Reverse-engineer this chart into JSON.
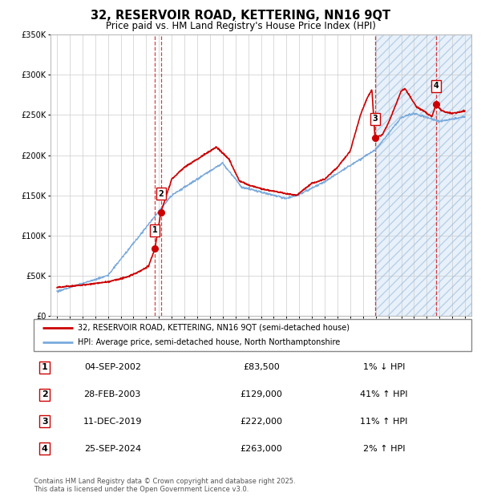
{
  "title": "32, RESERVOIR ROAD, KETTERING, NN16 9QT",
  "subtitle": "Price paid vs. HM Land Registry's House Price Index (HPI)",
  "sales": [
    {
      "label": "1",
      "date": "04-SEP-2002",
      "price": 83500,
      "x_year": 2002.69
    },
    {
      "label": "2",
      "date": "28-FEB-2003",
      "price": 129000,
      "x_year": 2003.16
    },
    {
      "label": "3",
      "date": "11-DEC-2019",
      "price": 222000,
      "x_year": 2019.94
    },
    {
      "label": "4",
      "date": "25-SEP-2024",
      "price": 263000,
      "x_year": 2024.73
    }
  ],
  "sale_rows": [
    {
      "num": "1",
      "date": "04-SEP-2002",
      "price": "£83,500",
      "hpi": "1% ↓ HPI"
    },
    {
      "num": "2",
      "date": "28-FEB-2003",
      "price": "£129,000",
      "hpi": "41% ↑ HPI"
    },
    {
      "num": "3",
      "date": "11-DEC-2019",
      "price": "£222,000",
      "hpi": "11% ↑ HPI"
    },
    {
      "num": "4",
      "date": "25-SEP-2024",
      "price": "£263,000",
      "hpi": "2% ↑ HPI"
    }
  ],
  "hpi_color": "#7aaadd",
  "price_color": "#cc0000",
  "ylim_max": 350000,
  "yticks": [
    0,
    50000,
    100000,
    150000,
    200000,
    250000,
    300000,
    350000
  ],
  "xlim_start": 1994.5,
  "xlim_end": 2027.5,
  "footer": "Contains HM Land Registry data © Crown copyright and database right 2025.\nThis data is licensed under the Open Government Licence v3.0.",
  "legend_property_label": "32, RESERVOIR ROAD, KETTERING, NN16 9QT (semi-detached house)",
  "legend_hpi_label": "HPI: Average price, semi-detached house, North Northamptonshire",
  "shaded_region_start": 2019.94,
  "shaded_region_end": 2027.5
}
